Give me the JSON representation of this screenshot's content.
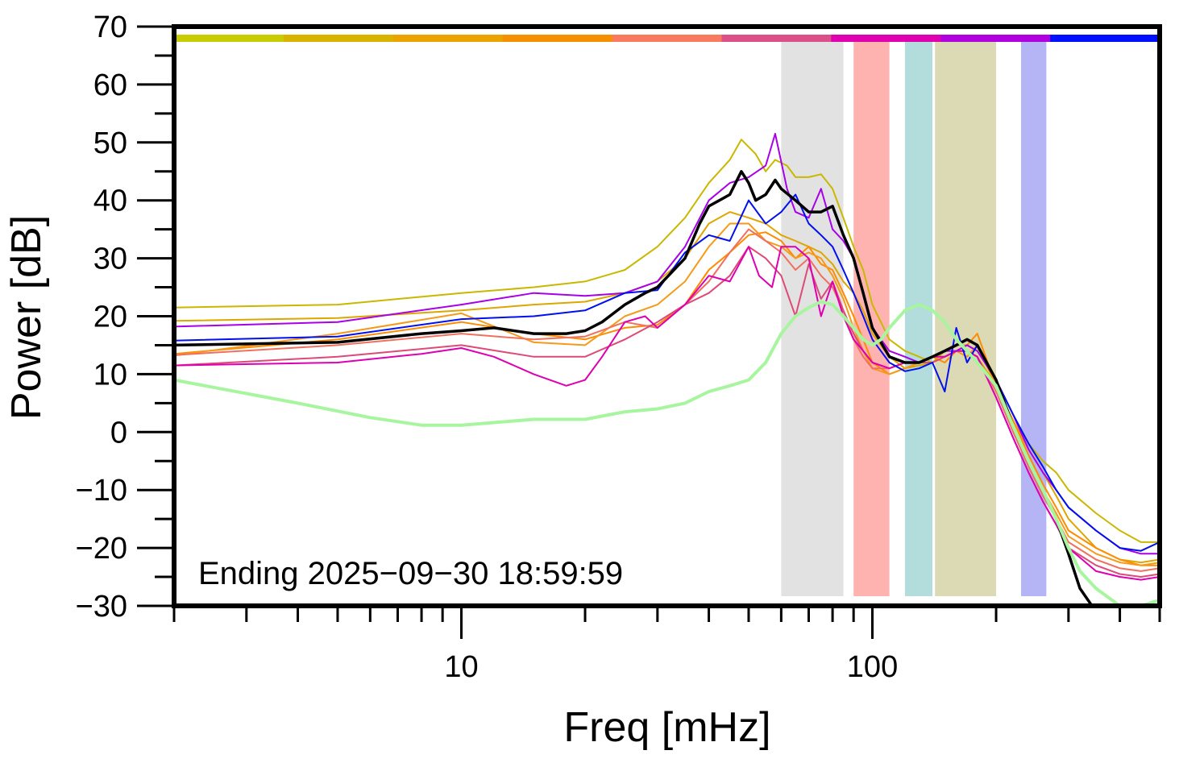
{
  "chart_data": {
    "type": "line",
    "title": "",
    "xlabel": "Freq [mHz]",
    "ylabel": "Power [dB]",
    "x_scale": "log",
    "xlim": [
      2,
      500
    ],
    "ylim": [
      -30,
      70
    ],
    "x_tick_labels": [
      "10",
      "100"
    ],
    "y_tick_labels": [
      "70",
      "60",
      "50",
      "40",
      "30",
      "20",
      "10",
      "0",
      "−10",
      "−20",
      "−30"
    ],
    "grid": false,
    "annotation": "Ending 2025−09−30 18:59:59",
    "period_bar_colors": [
      "#c8cc00",
      "#d8b400",
      "#eba300",
      "#f59000",
      "#fa7a60",
      "#dc508a",
      "#df00b0",
      "#b000e0",
      "#0010ff"
    ],
    "bands": [
      {
        "from": 60,
        "to": 85,
        "color": "#e2e2e2"
      },
      {
        "from": 90,
        "to": 110,
        "color": "#ffb3b0"
      },
      {
        "from": 120,
        "to": 140,
        "color": "#b3dcdc"
      },
      {
        "from": 142,
        "to": 200,
        "color": "#dbdab5"
      },
      {
        "from": 230,
        "to": 265,
        "color": "#b5b5f5"
      }
    ],
    "series": [
      {
        "color": "#c8b800",
        "width": 2,
        "x": [
          2,
          5,
          10,
          15,
          20,
          25,
          30,
          35,
          40,
          45,
          48,
          52,
          55,
          58,
          62,
          65,
          70,
          75,
          80,
          85,
          90,
          95,
          100,
          110,
          120,
          130,
          140,
          150,
          160,
          170,
          180,
          200,
          220,
          240,
          260,
          280,
          300,
          350,
          400,
          450,
          500
        ],
        "y": [
          21.5,
          22,
          24,
          25,
          26,
          28,
          32,
          37,
          43,
          47,
          50.5,
          48,
          45,
          47,
          46,
          44,
          44,
          44.5,
          42,
          37,
          32,
          28,
          22,
          16,
          14,
          13,
          12,
          14,
          15,
          15,
          14,
          9,
          3,
          -2,
          -5,
          -7,
          -10,
          -14,
          -17,
          -19,
          -19
        ]
      },
      {
        "color": "#dda600",
        "width": 2,
        "x": [
          2,
          5,
          10,
          15,
          20,
          25,
          30,
          35,
          40,
          45,
          50,
          55,
          60,
          65,
          70,
          75,
          80,
          85,
          90,
          95,
          100,
          110,
          120,
          130,
          140,
          150,
          160,
          170,
          180,
          200,
          220,
          240,
          260,
          280,
          300,
          350,
          400,
          450,
          500
        ],
        "y": [
          19.2,
          19.7,
          21,
          22,
          22.5,
          24,
          26,
          30,
          36,
          38,
          37,
          36,
          34,
          33,
          32,
          31,
          29,
          26,
          24,
          21,
          17,
          13,
          11,
          11.5,
          12,
          13,
          14,
          14,
          13,
          8,
          2,
          -3,
          -7,
          -11,
          -15,
          -20,
          -22,
          -22.5,
          -22
        ]
      },
      {
        "color": "#ff8c00",
        "width": 2,
        "x": [
          2,
          5,
          10,
          15,
          20,
          25,
          30,
          35,
          40,
          45,
          50,
          55,
          60,
          65,
          70,
          75,
          80,
          85,
          90,
          95,
          100,
          110,
          120,
          130,
          140,
          150,
          160,
          170,
          180,
          200,
          220,
          240,
          260,
          280,
          300,
          350,
          400,
          450,
          500
        ],
        "y": [
          13.5,
          16,
          19,
          17,
          16,
          18,
          18.5,
          22,
          28,
          31,
          34,
          34.5,
          33,
          30,
          32,
          29,
          28,
          24,
          20,
          16,
          12,
          10,
          11,
          12,
          13,
          12,
          14,
          15,
          17,
          8,
          2,
          -4,
          -9,
          -13,
          -17,
          -20,
          -22,
          -23,
          -23
        ]
      },
      {
        "color": "#f59a1a",
        "width": 2,
        "x": [
          2,
          5,
          10,
          15,
          20,
          25,
          30,
          35,
          40,
          45,
          50,
          55,
          60,
          65,
          70,
          75,
          80,
          85,
          90,
          95,
          100,
          110,
          120,
          130,
          140,
          150,
          160,
          170,
          180,
          200,
          220,
          240,
          260,
          280,
          300,
          350,
          400,
          450,
          500
        ],
        "y": [
          13.2,
          17,
          20.5,
          15.5,
          15,
          20,
          22,
          26,
          32,
          36,
          36,
          33,
          32,
          30,
          31,
          30,
          27,
          23,
          18,
          14,
          11,
          10,
          11,
          12,
          13,
          13,
          14,
          13,
          15,
          8,
          1,
          -5,
          -10,
          -14,
          -18,
          -21,
          -22.5,
          -23,
          -22.5
        ]
      },
      {
        "color": "#f07060",
        "width": 2,
        "x": [
          2,
          5,
          10,
          15,
          20,
          25,
          30,
          35,
          40,
          45,
          50,
          55,
          60,
          65,
          70,
          75,
          80,
          85,
          90,
          95,
          100,
          110,
          120,
          130,
          140,
          150,
          160,
          170,
          180,
          200,
          220,
          240,
          260,
          280,
          300,
          350,
          400,
          450,
          500
        ],
        "y": [
          13.3,
          15,
          17,
          16,
          16.5,
          19,
          18,
          22,
          26,
          31,
          35,
          33,
          31,
          28,
          30,
          27,
          25,
          21,
          16,
          13,
          11,
          11,
          12,
          12,
          12,
          13,
          14,
          14,
          13,
          7,
          0,
          -6,
          -11,
          -15,
          -19,
          -22,
          -23.5,
          -24,
          -23.5
        ]
      },
      {
        "color": "#dd4a78",
        "width": 2,
        "x": [
          2,
          5,
          10,
          15,
          20,
          25,
          30,
          35,
          40,
          45,
          50,
          55,
          60,
          65,
          70,
          75,
          80,
          85,
          90,
          95,
          100,
          110,
          120,
          130,
          140,
          150,
          160,
          170,
          180,
          200,
          220,
          240,
          260,
          280,
          300,
          350,
          400,
          450,
          500
        ],
        "y": [
          11.5,
          13,
          15,
          13,
          13,
          16,
          19,
          22,
          24,
          27,
          32,
          30,
          27,
          20,
          29,
          23,
          26,
          21,
          17,
          14,
          12,
          11,
          12,
          12,
          12,
          13,
          14,
          14,
          13,
          6,
          -1,
          -7,
          -12,
          -16,
          -20,
          -23,
          -24.5,
          -25,
          -24.5
        ]
      },
      {
        "color": "#dd00b0",
        "width": 2,
        "x": [
          2,
          5,
          8,
          10,
          12,
          15,
          18,
          20,
          22,
          25,
          28,
          30,
          35,
          40,
          45,
          50,
          53,
          57,
          60,
          65,
          70,
          75,
          80,
          85,
          90,
          95,
          100,
          110,
          120,
          130,
          140,
          150,
          160,
          170,
          180,
          200,
          220,
          240,
          260,
          280,
          300,
          350,
          400,
          450,
          500
        ],
        "y": [
          11.5,
          12,
          13.5,
          14.5,
          13,
          10,
          8,
          9,
          13,
          19,
          20,
          18,
          22,
          27,
          26,
          32,
          27,
          25,
          32,
          32,
          30,
          20,
          26,
          20,
          16,
          14,
          12,
          11,
          12,
          12,
          13,
          13,
          14,
          14,
          13,
          6,
          -1,
          -7,
          -12,
          -16,
          -20,
          -24,
          -25,
          -25.5,
          -25
        ]
      },
      {
        "color": "#a800e8",
        "width": 2,
        "x": [
          2,
          5,
          10,
          15,
          20,
          25,
          30,
          35,
          40,
          45,
          50,
          55,
          58,
          62,
          65,
          70,
          75,
          80,
          85,
          90,
          95,
          100,
          110,
          120,
          130,
          140,
          150,
          160,
          170,
          180,
          200,
          220,
          240,
          260,
          280,
          300,
          350,
          400,
          450,
          500
        ],
        "y": [
          18.2,
          19,
          22,
          24,
          23.5,
          24,
          26,
          32,
          40,
          43,
          44,
          46,
          51.5,
          42,
          38,
          37,
          42,
          35,
          33,
          30,
          24,
          18,
          14,
          13,
          12,
          13,
          14,
          14,
          15,
          14,
          9,
          3,
          -3,
          -7,
          -10,
          -13,
          -17,
          -20,
          -21,
          -21
        ]
      },
      {
        "color": "#0010ee",
        "width": 2,
        "x": [
          2,
          5,
          10,
          15,
          20,
          25,
          30,
          35,
          40,
          45,
          50,
          55,
          60,
          65,
          70,
          75,
          80,
          85,
          90,
          95,
          100,
          110,
          120,
          130,
          140,
          150,
          160,
          170,
          180,
          200,
          220,
          240,
          260,
          280,
          300,
          350,
          400,
          450,
          500
        ],
        "y": [
          15.8,
          16.5,
          19.5,
          20,
          21,
          24,
          24.5,
          31,
          34,
          33,
          40,
          36,
          38,
          41,
          36,
          34,
          32,
          28,
          24,
          20,
          16,
          12,
          10.5,
          11,
          12,
          7,
          18,
          12,
          15,
          9,
          3,
          -2,
          -6,
          -10,
          -13,
          -17,
          -20,
          -20.5,
          -19
        ]
      },
      {
        "color": "#000000",
        "width": 3.5,
        "x": [
          2,
          5,
          8,
          10,
          12,
          15,
          18,
          20,
          22,
          25,
          28,
          30,
          35,
          38,
          40,
          45,
          48,
          50,
          52,
          55,
          58,
          60,
          65,
          70,
          75,
          80,
          85,
          90,
          95,
          100,
          110,
          120,
          130,
          140,
          150,
          160,
          170,
          180,
          200,
          220,
          240,
          260,
          280,
          300,
          320,
          350,
          400,
          450,
          500
        ],
        "y": [
          15,
          15.5,
          17,
          17.5,
          18,
          17,
          17,
          17.5,
          19,
          22,
          24,
          25,
          30,
          36,
          39,
          41,
          45,
          43,
          40,
          41,
          43.5,
          42,
          40,
          38,
          38,
          39,
          34,
          30,
          24,
          18,
          13,
          12,
          12,
          13,
          14,
          15,
          16,
          15,
          9,
          1,
          -5,
          -10,
          -15,
          -21,
          -27,
          -31,
          -33,
          -33,
          -33
        ]
      },
      {
        "color": "#a8f5a0",
        "width": 4,
        "x": [
          2,
          4,
          6,
          8,
          10,
          15,
          20,
          25,
          30,
          35,
          40,
          45,
          50,
          55,
          60,
          65,
          70,
          75,
          80,
          85,
          90,
          95,
          100,
          105,
          110,
          120,
          130,
          140,
          150,
          160,
          170,
          180,
          200,
          220,
          240,
          260,
          280,
          300,
          320,
          350,
          400,
          450,
          500
        ],
        "y": [
          9,
          5,
          2.5,
          1.2,
          1.2,
          2.2,
          2.2,
          3.5,
          4,
          5,
          7,
          8,
          9,
          12,
          17,
          20,
          21.5,
          22.5,
          22,
          20,
          18,
          16,
          15,
          16,
          18,
          21,
          22,
          21,
          19,
          16,
          14,
          12,
          8,
          1,
          -5,
          -10,
          -15,
          -20,
          -24,
          -27,
          -30,
          -30,
          -29
        ]
      }
    ]
  }
}
